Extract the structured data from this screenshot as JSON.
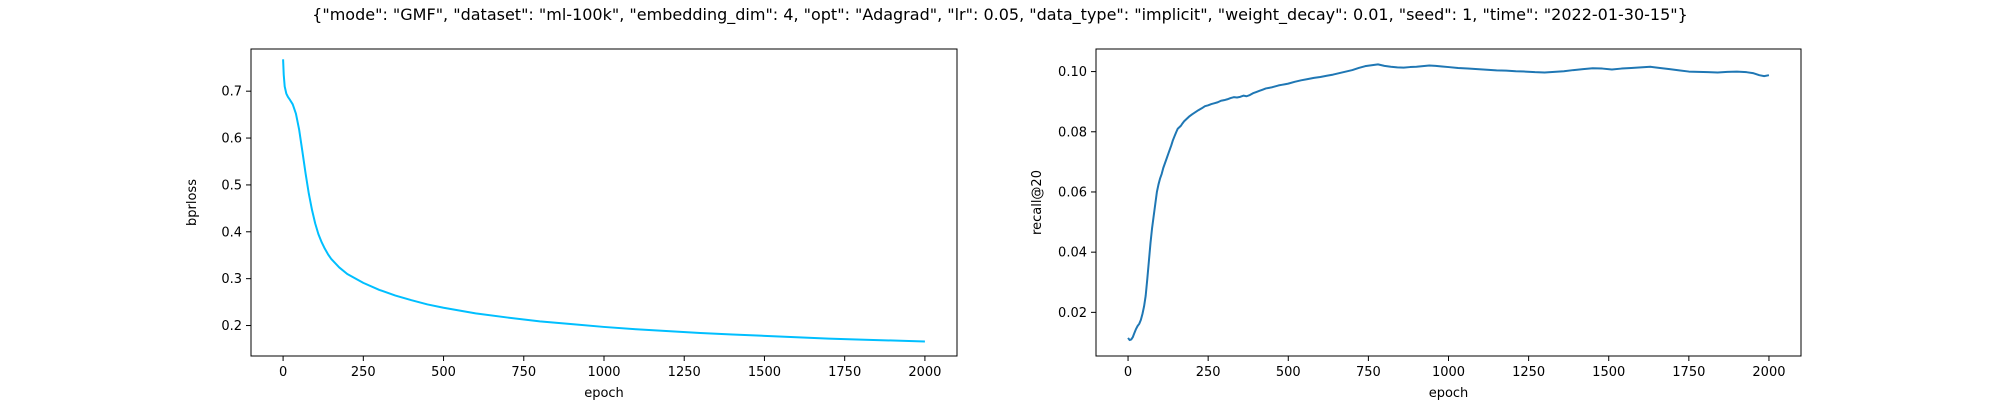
{
  "figure": {
    "title": "{\"mode\": \"GMF\", \"dataset\": \"ml-100k\", \"embedding_dim\": 4, \"opt\": \"Adagrad\", \"lr\": 0.05, \"data_type\": \"implicit\", \"weight_decay\": 0.01, \"seed\": 1, \"time\": \"2022-01-30-15\"}"
  },
  "chart_data": [
    {
      "type": "line",
      "title": "",
      "xlabel": "epoch",
      "ylabel": "bprloss",
      "xlim": [
        -100,
        2100
      ],
      "ylim": [
        0.135,
        0.79
      ],
      "xticks": [
        0,
        250,
        500,
        750,
        1000,
        1250,
        1500,
        1750,
        2000
      ],
      "yticks": [
        0.2,
        0.3,
        0.4,
        0.5,
        0.6,
        0.7
      ],
      "xtick_labels": [
        "0",
        "250",
        "500",
        "750",
        "1000",
        "1250",
        "1500",
        "1750",
        "2000"
      ],
      "ytick_labels": [
        "0.2",
        "0.3",
        "0.4",
        "0.5",
        "0.6",
        "0.7"
      ],
      "grid": false,
      "color": "#00bfff",
      "series": [
        {
          "x": [
            0,
            2,
            5,
            10,
            15,
            20,
            30,
            40,
            50,
            60,
            70,
            80,
            90,
            100,
            110,
            120,
            130,
            140,
            150,
            175,
            200,
            250,
            300,
            350,
            400,
            450,
            500,
            600,
            700,
            800,
            900,
            1000,
            1100,
            1200,
            1300,
            1400,
            1500,
            1600,
            1700,
            1800,
            1900,
            2000
          ],
          "y": [
            0.768,
            0.735,
            0.71,
            0.695,
            0.688,
            0.683,
            0.672,
            0.652,
            0.618,
            0.572,
            0.525,
            0.482,
            0.447,
            0.418,
            0.395,
            0.378,
            0.364,
            0.352,
            0.342,
            0.324,
            0.31,
            0.291,
            0.276,
            0.264,
            0.254,
            0.245,
            0.238,
            0.226,
            0.217,
            0.209,
            0.203,
            0.197,
            0.192,
            0.188,
            0.184,
            0.181,
            0.178,
            0.175,
            0.172,
            0.17,
            0.168,
            0.166
          ]
        }
      ]
    },
    {
      "type": "line",
      "title": "",
      "xlabel": "epoch",
      "ylabel": "recall@20",
      "xlim": [
        -100,
        2100
      ],
      "ylim": [
        0.0055,
        0.1075
      ],
      "xticks": [
        0,
        250,
        500,
        750,
        1000,
        1250,
        1500,
        1750,
        2000
      ],
      "yticks": [
        0.02,
        0.04,
        0.06,
        0.08,
        0.1
      ],
      "xtick_labels": [
        "0",
        "250",
        "500",
        "750",
        "1000",
        "1250",
        "1500",
        "1750",
        "2000"
      ],
      "ytick_labels": [
        "0.02",
        "0.04",
        "0.06",
        "0.08",
        "0.10"
      ],
      "grid": false,
      "color": "#1f77b4",
      "series": [
        {
          "x": [
            0,
            5,
            10,
            15,
            20,
            25,
            30,
            35,
            40,
            45,
            50,
            55,
            60,
            65,
            70,
            75,
            80,
            85,
            90,
            95,
            100,
            105,
            110,
            115,
            120,
            125,
            130,
            135,
            140,
            145,
            150,
            155,
            160,
            165,
            170,
            175,
            180,
            185,
            190,
            200,
            210,
            220,
            230,
            240,
            250,
            260,
            270,
            280,
            290,
            300,
            310,
            320,
            330,
            340,
            350,
            360,
            370,
            380,
            390,
            400,
            410,
            420,
            430,
            440,
            450,
            460,
            470,
            480,
            490,
            500,
            520,
            540,
            560,
            580,
            600,
            620,
            640,
            660,
            680,
            700,
            720,
            740,
            760,
            780,
            800,
            820,
            840,
            860,
            880,
            900,
            920,
            940,
            960,
            980,
            1000,
            1030,
            1060,
            1090,
            1120,
            1150,
            1180,
            1210,
            1240,
            1270,
            1300,
            1330,
            1360,
            1390,
            1420,
            1450,
            1480,
            1510,
            1540,
            1570,
            1600,
            1630,
            1660,
            1690,
            1720,
            1750,
            1780,
            1810,
            1840,
            1870,
            1900,
            1930,
            1950,
            1970,
            1985,
            2000
          ],
          "y": [
            0.0115,
            0.0108,
            0.011,
            0.0118,
            0.0132,
            0.0145,
            0.0155,
            0.0162,
            0.0175,
            0.0195,
            0.022,
            0.0255,
            0.031,
            0.037,
            0.043,
            0.048,
            0.052,
            0.056,
            0.06,
            0.0625,
            0.0645,
            0.066,
            0.068,
            0.0695,
            0.071,
            0.0725,
            0.074,
            0.0755,
            0.0772,
            0.0785,
            0.0798,
            0.081,
            0.0815,
            0.082,
            0.0828,
            0.0835,
            0.084,
            0.0845,
            0.085,
            0.0858,
            0.0865,
            0.0872,
            0.0878,
            0.0885,
            0.0888,
            0.0892,
            0.0895,
            0.0898,
            0.0903,
            0.0905,
            0.0908,
            0.0912,
            0.0915,
            0.0914,
            0.0916,
            0.092,
            0.0918,
            0.0922,
            0.0928,
            0.0932,
            0.0936,
            0.094,
            0.0944,
            0.0946,
            0.0948,
            0.0951,
            0.0954,
            0.0956,
            0.0958,
            0.096,
            0.0966,
            0.0971,
            0.0975,
            0.0979,
            0.0982,
            0.0986,
            0.099,
            0.0995,
            0.1,
            0.1005,
            0.1012,
            0.1018,
            0.1021,
            0.1024,
            0.1019,
            0.1016,
            0.1014,
            0.1013,
            0.1015,
            0.1016,
            0.1018,
            0.102,
            0.1019,
            0.1017,
            0.1015,
            0.1012,
            0.101,
            0.1008,
            0.1006,
            0.1004,
            0.1003,
            0.1001,
            0.1,
            0.0998,
            0.0997,
            0.0999,
            0.1001,
            0.1005,
            0.1008,
            0.1011,
            0.101,
            0.1007,
            0.101,
            0.1012,
            0.1014,
            0.1016,
            0.1012,
            0.1008,
            0.1004,
            0.1,
            0.0999,
            0.0998,
            0.0997,
            0.0999,
            0.1,
            0.0998,
            0.0995,
            0.0988,
            0.0985,
            0.0988
          ]
        }
      ]
    }
  ]
}
